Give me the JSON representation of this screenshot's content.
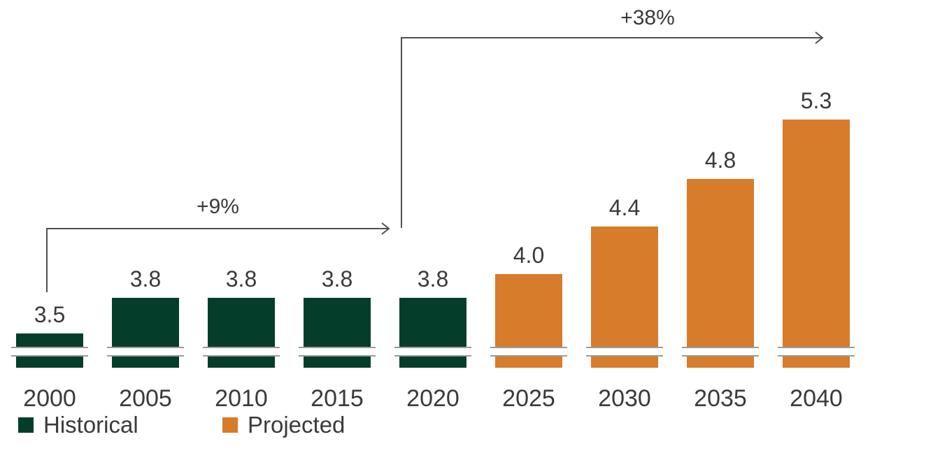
{
  "chart_data": {
    "type": "bar",
    "categories": [
      "2000",
      "2005",
      "2010",
      "2015",
      "2020",
      "2025",
      "2030",
      "2035",
      "2040"
    ],
    "values": [
      3.5,
      3.8,
      3.8,
      3.8,
      3.8,
      4.0,
      4.4,
      4.8,
      5.3
    ],
    "value_labels": [
      "3.5",
      "3.8",
      "3.8",
      "3.8",
      "3.8",
      "4.0",
      "4.4",
      "4.8",
      "5.3"
    ],
    "groups": [
      "Historical",
      "Historical",
      "Historical",
      "Historical",
      "Historical",
      "Projected",
      "Projected",
      "Projected",
      "Projected"
    ],
    "axis_break": true,
    "growth_annotations": [
      {
        "from": "2000",
        "to": "2020",
        "label": "+9%"
      },
      {
        "from": "2020",
        "to": "2040",
        "label": "+38%"
      }
    ],
    "legend": {
      "placement": "bottom-left",
      "items": [
        {
          "name": "Historical",
          "color": "#053d2b"
        },
        {
          "name": "Projected",
          "color": "#d67c2a"
        }
      ]
    },
    "colors": {
      "Historical": "#053d2b",
      "Projected": "#d67c2a",
      "text": "#3a3a3a",
      "arrow": "#505050"
    }
  }
}
